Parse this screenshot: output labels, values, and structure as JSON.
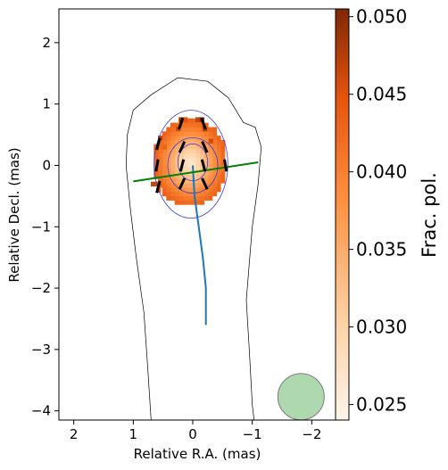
{
  "chart_data": {
    "type": "heatmap",
    "title": "",
    "xlabel": "Relative R.A. (mas)",
    "ylabel": "Relative Decl. (mas)",
    "xlim": [
      2.25,
      -2.4
    ],
    "ylim": [
      -4.15,
      2.55
    ],
    "x_ticks": [
      2,
      1,
      0,
      -1,
      -2
    ],
    "x_tick_labels": [
      "2",
      "1",
      "0",
      "−1",
      "−2"
    ],
    "y_ticks": [
      2,
      1,
      0,
      -1,
      -2,
      -3,
      -4
    ],
    "y_tick_labels": [
      "2",
      "1",
      "0",
      "−1",
      "−2",
      "−3",
      "−4"
    ],
    "colorbar": {
      "label": "Frac. pol.",
      "range": [
        0.024,
        0.0505
      ],
      "ticks": [
        0.025,
        0.03,
        0.035,
        0.04,
        0.045,
        0.05
      ],
      "tick_labels": [
        "0.025",
        "0.030",
        "0.035",
        "0.040",
        "0.045",
        "0.050"
      ],
      "colormap": [
        "#fff5eb",
        "#fdd0a2",
        "#fd8d3c",
        "#e6550d",
        "#7f2704"
      ]
    },
    "pixel_size_mas": 0.07,
    "frac_pol_pixels": [
      {
        "x": 0.2,
        "y": 0.75,
        "v": 0.048
      },
      {
        "x": 0.13,
        "y": 0.75,
        "v": 0.044
      },
      {
        "x": -0.08,
        "y": 0.75,
        "v": 0.046
      },
      {
        "x": -0.15,
        "y": 0.75,
        "v": 0.049
      },
      {
        "x": 0.25,
        "y": 0.6,
        "v": 0.045
      },
      {
        "x": -0.2,
        "y": 0.6,
        "v": 0.047
      },
      {
        "x": 0.55,
        "y": 0.45,
        "v": 0.046
      },
      {
        "x": 0.48,
        "y": 0.3,
        "v": 0.042
      },
      {
        "x": -0.3,
        "y": 0.4,
        "v": 0.045
      },
      {
        "x": 0.6,
        "y": -0.3,
        "v": 0.044
      },
      {
        "x": 0.67,
        "y": -0.3,
        "v": 0.046
      },
      {
        "x": 0.58,
        "y": -0.4,
        "v": 0.043
      },
      {
        "x": -0.5,
        "y": -0.05,
        "v": 0.04
      }
    ],
    "frac_pol_region": {
      "cx": 0.05,
      "cy": 0.05,
      "rx": 0.62,
      "ry": 0.72,
      "v_min": 0.026,
      "v_max": 0.042
    },
    "evpa_segments": [
      {
        "x": 0.2,
        "y": 0.68,
        "angle_deg": 20
      },
      {
        "x": -0.18,
        "y": 0.68,
        "angle_deg": -20
      },
      {
        "x": 0.58,
        "y": 0.35,
        "angle_deg": 15
      },
      {
        "x": 0.18,
        "y": 0.3,
        "angle_deg": 25
      },
      {
        "x": -0.2,
        "y": 0.3,
        "angle_deg": -25
      },
      {
        "x": 0.6,
        "y": 0.0,
        "angle_deg": 10
      },
      {
        "x": 0.18,
        "y": 0.0,
        "angle_deg": 15
      },
      {
        "x": -0.18,
        "y": 0.0,
        "angle_deg": -15
      },
      {
        "x": -0.55,
        "y": 0.0,
        "angle_deg": -10
      },
      {
        "x": 0.18,
        "y": -0.3,
        "angle_deg": 25
      },
      {
        "x": -0.2,
        "y": -0.3,
        "angle_deg": -25
      },
      {
        "x": 0.58,
        "y": -0.35,
        "angle_deg": 15
      }
    ],
    "jet_ridge_line": [
      {
        "x": 0.0,
        "y": 0.0
      },
      {
        "x": -0.03,
        "y": -0.5
      },
      {
        "x": -0.1,
        "y": -1.0
      },
      {
        "x": -0.17,
        "y": -1.5
      },
      {
        "x": -0.22,
        "y": -2.0
      },
      {
        "x": -0.22,
        "y": -2.6
      }
    ],
    "transverse_cut": [
      {
        "x": 1.0,
        "y": -0.26
      },
      {
        "x": -1.1,
        "y": 0.05
      }
    ],
    "outer_contour": [
      {
        "x": 0.7,
        "y": 1.15
      },
      {
        "x": 0.25,
        "y": 1.43
      },
      {
        "x": -0.25,
        "y": 1.37
      },
      {
        "x": -0.6,
        "y": 1.1
      },
      {
        "x": -0.85,
        "y": 0.7
      },
      {
        "x": -1.05,
        "y": 0.62
      },
      {
        "x": -1.15,
        "y": 0.3
      },
      {
        "x": -1.1,
        "y": -0.3
      },
      {
        "x": -1.0,
        "y": -1.0
      },
      {
        "x": -0.95,
        "y": -1.6
      },
      {
        "x": -0.9,
        "y": -2.2
      },
      {
        "x": -0.95,
        "y": -3.0
      },
      {
        "x": -1.0,
        "y": -3.9
      },
      {
        "x": -1.03,
        "y": -4.15
      },
      {
        "x": 0.7,
        "y": -4.15
      },
      {
        "x": 0.75,
        "y": -3.4
      },
      {
        "x": 0.82,
        "y": -2.4
      },
      {
        "x": 0.95,
        "y": -1.5
      },
      {
        "x": 1.05,
        "y": -0.7
      },
      {
        "x": 1.12,
        "y": 0.0
      },
      {
        "x": 1.1,
        "y": 0.5
      },
      {
        "x": 1.0,
        "y": 0.9
      }
    ],
    "inner_contours": [
      {
        "cx": 0.03,
        "cy": 0.02,
        "rx": 0.62,
        "ry": 0.88
      },
      {
        "cx": 0.0,
        "cy": 0.0,
        "rx": 0.42,
        "ry": 0.45
      },
      {
        "cx": 0.0,
        "cy": 0.05,
        "rx": 0.25,
        "ry": 0.3
      }
    ],
    "beam": {
      "x": -1.82,
      "y": -3.77,
      "diameter_mas": 0.78
    },
    "colors": {
      "outer_contour": "#000000",
      "inner_contours": "#3b3bdd",
      "evpa": "#000000",
      "ridge": "#1f77b4",
      "cut": "#008000",
      "beam": "#8cc98c"
    }
  }
}
